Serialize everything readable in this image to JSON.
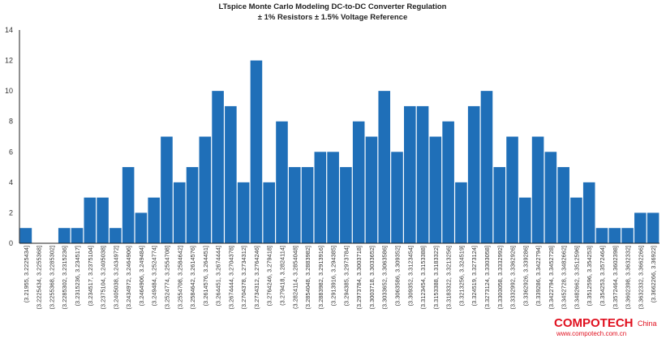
{
  "chart_data": {
    "type": "bar",
    "title": "LTspice Monte Carlo Modeling DC-to-DC Converter Regulation",
    "subtitle": "± 1% Resistors ± 1.5% Voltage Reference",
    "ylim": [
      0,
      14
    ],
    "yticks": [
      0,
      2,
      4,
      6,
      8,
      10,
      12,
      14
    ],
    "grid": false,
    "bar_color": "#1f6fb8",
    "axis_color": "#222222",
    "categories": [
      "(3.21955, 3.2225434]",
      "(3.2225434, 3.2255368]",
      "(3.2255368, 3.2285302]",
      "(3.2285302, 3.2315236]",
      "(3.2315236, 3.234517]",
      "(3.234517, 3.2375104]",
      "(3.2375104, 3.2405038]",
      "(3.2405038, 3.2434972]",
      "(3.2434972, 3.2464906]",
      "(3.2464906, 3.249484]",
      "(3.249484, 3.2524774]",
      "(3.2524774, 3.2554708]",
      "(3.2554708, 3.2584642]",
      "(3.2584642, 3.2614576]",
      "(3.2614576, 3.264451]",
      "(3.264451, 3.2674444]",
      "(3.2674444, 3.2704378]",
      "(3.2704378, 3.2734312]",
      "(3.2734312, 3.2764246]",
      "(3.2764246, 3.279418]",
      "(3.279418, 3.2824114]",
      "(3.2824114, 3.2854048]",
      "(3.2854048, 3.2883982]",
      "(3.2883982, 3.2913916]",
      "(3.2913916, 3.294385]",
      "(3.294385, 3.2973784]",
      "(3.2973784, 3.3003718]",
      "(3.3003718, 3.3033652]",
      "(3.3033652, 3.3063586]",
      "(3.3063586, 3.309352]",
      "(3.309352, 3.3123454]",
      "(3.3123454, 3.3153388]",
      "(3.3153388, 3.3183322]",
      "(3.3183322, 3.3213256]",
      "(3.3213256, 3.324519]",
      "(3.324519, 3.3273124]",
      "(3.3273124, 3.3303058]",
      "(3.3303058, 3.3332992]",
      "(3.3332992, 3.3362926]",
      "(3.3362926, 3.339286]",
      "(3.339286, 3.3422794]",
      "(3.3422794, 3.3452728]",
      "(3.3452728, 3.3482662]",
      "(3.3482662, 3.3512596]",
      "(3.3512596, 3.354253]",
      "(3.354253, 3.3572464]",
      "(3.3572464, 3.3602398]",
      "(3.3602398, 3.3632332]",
      "(3.3632332, 3.3662266]",
      "(3.3662266, 3.36922]"
    ],
    "values": [
      1,
      0,
      0,
      1,
      1,
      3,
      3,
      1,
      5,
      2,
      3,
      7,
      4,
      5,
      7,
      10,
      9,
      4,
      12,
      4,
      8,
      5,
      5,
      6,
      6,
      5,
      8,
      7,
      10,
      6,
      9,
      9,
      7,
      8,
      4,
      9,
      10,
      5,
      7,
      3,
      7,
      6,
      5,
      3,
      4,
      1,
      1,
      1,
      2,
      2
    ]
  },
  "watermark": {
    "brand": "COMPOTECH",
    "suffix": "China",
    "url": "www.compotech.com.cn",
    "color": "#e0101f"
  }
}
